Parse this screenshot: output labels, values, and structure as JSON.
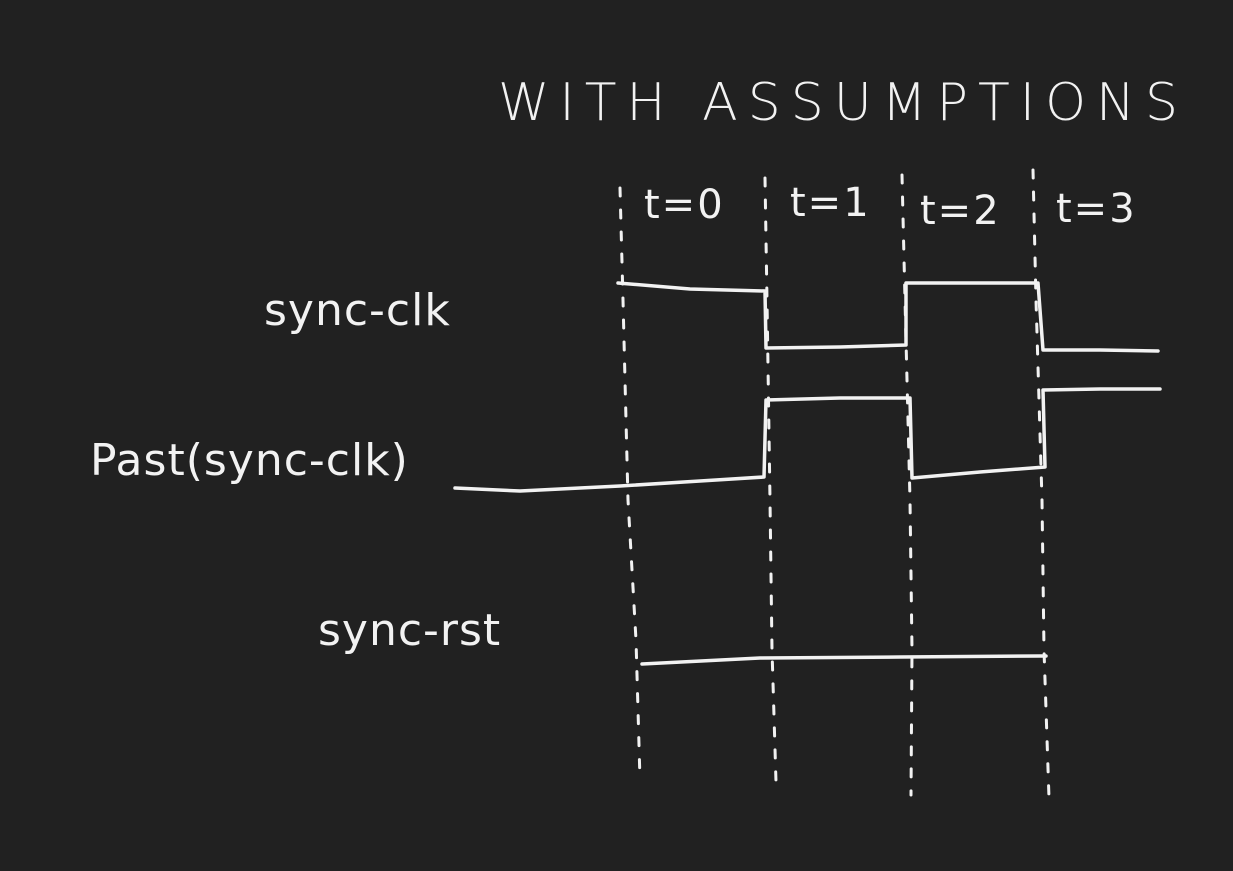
{
  "title": "WITH ASSUMPTIONS",
  "time_labels": [
    "t=0",
    "t=1",
    "t=2",
    "t=3"
  ],
  "signals": [
    {
      "name": "sync-clk",
      "levels": [
        1,
        0,
        1,
        0
      ]
    },
    {
      "name": "Past(sync-clk)",
      "levels": [
        0,
        1,
        0,
        1
      ]
    },
    {
      "name": "sync-rst",
      "levels": [
        0,
        0,
        0,
        0
      ]
    }
  ]
}
